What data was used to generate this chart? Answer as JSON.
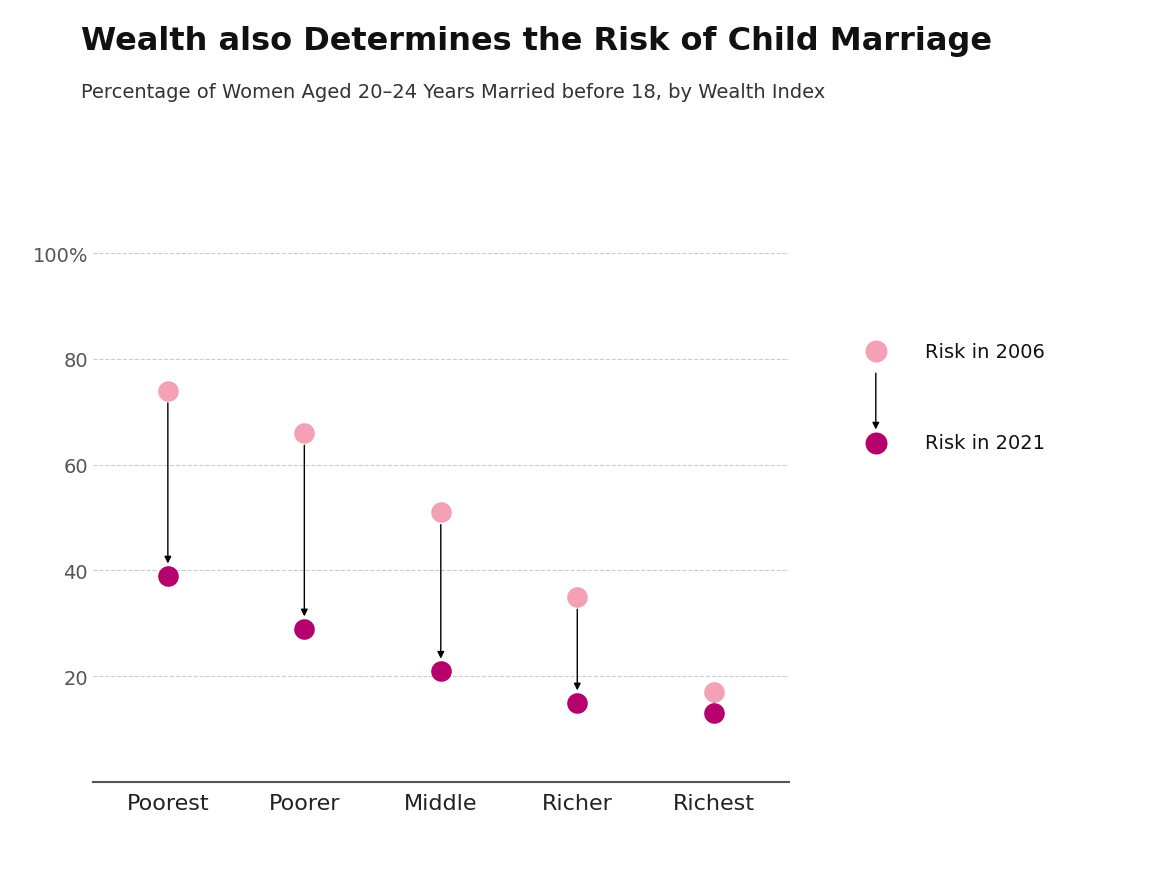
{
  "title": "Wealth also Determines the Risk of Child Marriage",
  "subtitle": "Percentage of Women Aged 20–24 Years Married before 18, by Wealth Index",
  "categories": [
    "Poorest",
    "Poorer",
    "Middle",
    "Richer",
    "Richest"
  ],
  "values_2006": [
    74,
    66,
    51,
    35,
    17
  ],
  "values_2021": [
    39,
    29,
    21,
    15,
    13
  ],
  "color_2006": "#f4a0b5",
  "color_2021": "#b5006e",
  "ylim": [
    0,
    102
  ],
  "yticks": [
    20,
    40,
    60,
    80,
    100
  ],
  "legend_label_2006": "Risk in 2006",
  "legend_label_2021": "Risk in 2021",
  "bg_color": "#ffffff",
  "grid_color": "#cccccc",
  "title_fontsize": 23,
  "subtitle_fontsize": 14,
  "tick_fontsize": 14,
  "marker_size": 220
}
